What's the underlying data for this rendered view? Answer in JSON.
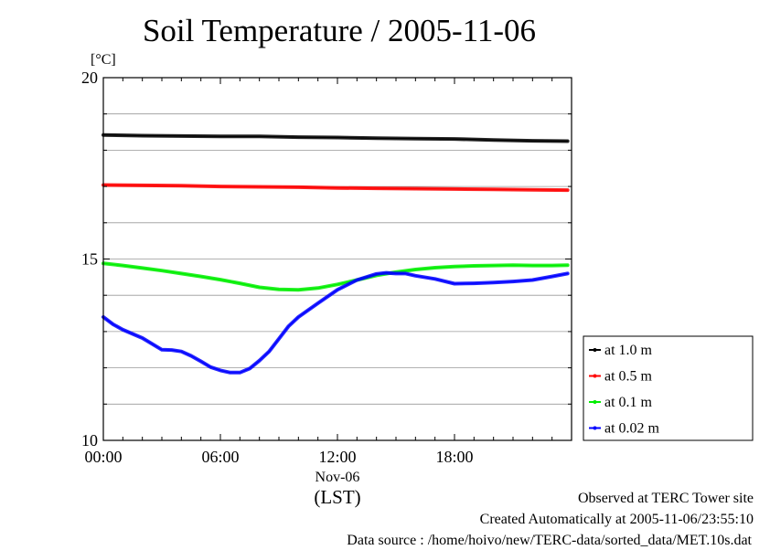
{
  "chart_data": {
    "type": "line",
    "title": "Soil Temperature / 2005-11-06",
    "ylabel": "[°C]",
    "xlabel": "(LST)",
    "x_date_label": "Nov-06",
    "ylim": [
      10,
      20
    ],
    "xlim": [
      0,
      24
    ],
    "y_ticks": [
      10,
      15,
      20
    ],
    "y_minor_step": 1,
    "x_ticks": [
      {
        "value": 0,
        "label": "00:00"
      },
      {
        "value": 6,
        "label": "06:00"
      },
      {
        "value": 12,
        "label": "12:00"
      },
      {
        "value": 18,
        "label": "18:00"
      }
    ],
    "grid": "horizontal",
    "legend_position": "right",
    "series": [
      {
        "name": "at 1.0 m",
        "color": "#000000",
        "x": [
          0,
          2,
          4,
          6,
          8,
          10,
          12,
          14,
          16,
          18,
          20,
          22,
          23.8
        ],
        "y": [
          18.42,
          18.4,
          18.39,
          18.38,
          18.38,
          18.36,
          18.35,
          18.33,
          18.32,
          18.31,
          18.28,
          18.26,
          18.25
        ]
      },
      {
        "name": "at 0.5 m",
        "color": "#ff0000",
        "x": [
          0,
          2,
          4,
          6,
          8,
          10,
          12,
          14,
          16,
          18,
          20,
          22,
          23.8
        ],
        "y": [
          17.04,
          17.03,
          17.02,
          17.0,
          16.99,
          16.98,
          16.96,
          16.95,
          16.94,
          16.93,
          16.92,
          16.91,
          16.9
        ]
      },
      {
        "name": "at 0.1 m",
        "color": "#00ee00",
        "x": [
          0,
          1,
          2,
          3,
          4,
          5,
          6,
          7,
          8,
          9,
          10,
          11,
          12,
          13,
          14,
          15,
          16,
          17,
          18,
          19,
          20,
          21,
          22,
          23,
          23.8
        ],
        "y": [
          14.88,
          14.82,
          14.75,
          14.68,
          14.6,
          14.52,
          14.43,
          14.33,
          14.22,
          14.16,
          14.15,
          14.2,
          14.3,
          14.42,
          14.55,
          14.64,
          14.71,
          14.76,
          14.79,
          14.81,
          14.82,
          14.83,
          14.82,
          14.82,
          14.83
        ]
      },
      {
        "name": "at 0.02 m",
        "color": "#0000ff",
        "x": [
          0,
          0.5,
          1,
          2,
          3,
          3.5,
          4,
          4.5,
          5,
          5.5,
          6,
          6.5,
          7,
          7.5,
          8,
          8.5,
          9,
          9.5,
          10,
          11,
          12,
          13,
          14,
          14.5,
          15,
          15.5,
          16,
          17,
          18,
          19,
          20,
          21,
          22,
          23,
          23.8
        ],
        "y": [
          13.4,
          13.2,
          13.05,
          12.82,
          12.5,
          12.49,
          12.45,
          12.33,
          12.18,
          12.02,
          11.93,
          11.87,
          11.87,
          11.98,
          12.2,
          12.45,
          12.8,
          13.15,
          13.4,
          13.78,
          14.15,
          14.42,
          14.59,
          14.62,
          14.6,
          14.6,
          14.54,
          14.45,
          14.32,
          14.33,
          14.35,
          14.38,
          14.42,
          14.52,
          14.6
        ]
      }
    ]
  },
  "footer": {
    "line1": "Observed at TERC Tower site",
    "line2": "Created Automatically at 2005-11-06/23:55:10",
    "line3": "Data source : /home/hoivo/new/TERC-data/sorted_data/MET.10s.dat"
  }
}
